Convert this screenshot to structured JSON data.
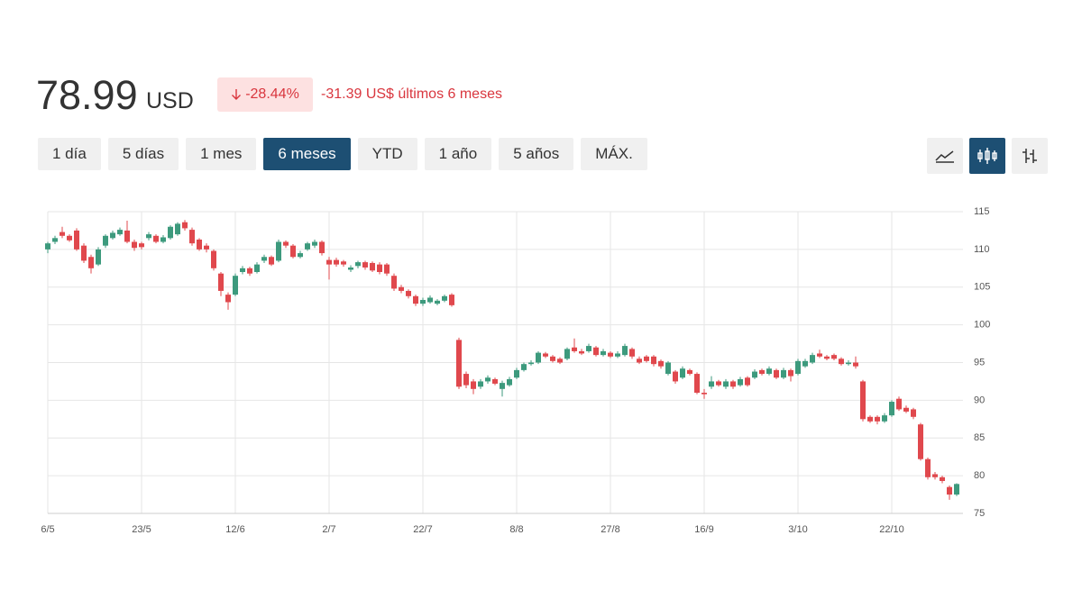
{
  "header": {
    "price": "78.99",
    "currency": "USD",
    "change_percent": "-28.44%",
    "change_text": "-31.39 US$ últimos 6 meses"
  },
  "range_buttons": [
    "1 día",
    "5 días",
    "1 mes",
    "6 meses",
    "YTD",
    "1 año",
    "5 años",
    "MÁX."
  ],
  "chart_data": {
    "type": "candlestick",
    "categories": [
      "6/5",
      null,
      null,
      null,
      null,
      null,
      null,
      null,
      null,
      null,
      null,
      null,
      null,
      "23/5",
      null,
      null,
      null,
      null,
      null,
      null,
      null,
      null,
      null,
      null,
      null,
      null,
      "12/6",
      null,
      null,
      null,
      null,
      null,
      null,
      null,
      null,
      null,
      null,
      null,
      null,
      "2/7",
      null,
      null,
      null,
      null,
      null,
      null,
      null,
      null,
      null,
      null,
      null,
      null,
      "22/7",
      null,
      null,
      null,
      null,
      null,
      null,
      null,
      null,
      null,
      null,
      null,
      null,
      "8/8",
      null,
      null,
      null,
      null,
      null,
      null,
      null,
      null,
      null,
      null,
      null,
      null,
      "27/8",
      null,
      null,
      null,
      null,
      null,
      null,
      null,
      null,
      null,
      null,
      null,
      null,
      "16/9",
      null,
      null,
      null,
      null,
      null,
      null,
      null,
      null,
      null,
      null,
      null,
      null,
      "3/10",
      null,
      null,
      null,
      null,
      null,
      null,
      null,
      null,
      null,
      null,
      null,
      null,
      "22/10",
      null,
      null,
      null,
      null,
      null,
      null,
      null,
      null,
      null
    ],
    "open": [
      110.0,
      111.0,
      112.3,
      111.8,
      112.5,
      110.5,
      109.0,
      108.0,
      110.5,
      111.5,
      112.0,
      112.5,
      111.0,
      110.8,
      111.5,
      111.8,
      111.0,
      111.5,
      112.0,
      113.6,
      112.6,
      111.3,
      110.5,
      109.8,
      106.8,
      104.0,
      104.0,
      107.0,
      107.5,
      107.0,
      108.5,
      109.0,
      108.5,
      111.0,
      110.5,
      109.0,
      110.0,
      110.5,
      111.0,
      108.6,
      108.6,
      108.4,
      107.3,
      107.8,
      108.3,
      108.2,
      108.0,
      108.0,
      106.5,
      105.0,
      104.5,
      103.8,
      102.8,
      103.0,
      102.8,
      103.2,
      104.0,
      98.0,
      93.5,
      92.5,
      91.8,
      92.5,
      92.8,
      91.5,
      92.0,
      93.0,
      94.0,
      94.8,
      95.0,
      96.2,
      95.8,
      95.5,
      95.5,
      97.0,
      96.5,
      96.5,
      97.0,
      96.0,
      96.3,
      95.8,
      96.0,
      96.8,
      95.5,
      95.8,
      95.8,
      95.2,
      93.5,
      93.8,
      93.0,
      94.0,
      93.5,
      91.0,
      91.8,
      92.5,
      91.8,
      92.5,
      92.0,
      93.0,
      93.0,
      94.0,
      93.5,
      94.0,
      93.0,
      94.0,
      93.5,
      94.5,
      95.0,
      96.2,
      95.8,
      96.0,
      95.5,
      94.8,
      95.0,
      92.5,
      87.8,
      87.8,
      87.2,
      88.0,
      90.2,
      89.0,
      88.8,
      86.8,
      82.2,
      80.2,
      79.8,
      78.5,
      77.5
    ],
    "high": [
      111.0,
      111.8,
      113.0,
      112.0,
      112.8,
      110.8,
      109.3,
      110.3,
      112.0,
      112.5,
      112.9,
      113.8,
      111.3,
      111.0,
      112.3,
      112.0,
      111.9,
      113.2,
      113.6,
      113.9,
      112.9,
      111.5,
      110.8,
      110.0,
      107.0,
      104.3,
      106.8,
      107.8,
      107.7,
      108.3,
      109.3,
      109.2,
      111.3,
      111.2,
      110.7,
      109.8,
      111.0,
      111.3,
      111.2,
      109.0,
      108.9,
      108.6,
      107.9,
      108.5,
      108.5,
      108.4,
      108.3,
      108.2,
      106.8,
      105.3,
      104.7,
      104.0,
      103.6,
      103.9,
      103.4,
      104.0,
      104.2,
      98.3,
      93.8,
      92.8,
      92.8,
      93.3,
      93.0,
      92.6,
      93.1,
      94.3,
      95.0,
      95.3,
      96.5,
      96.4,
      96.0,
      95.7,
      97.0,
      98.2,
      96.8,
      97.5,
      97.2,
      96.8,
      96.5,
      96.5,
      97.5,
      97.0,
      95.8,
      96.0,
      96.0,
      95.4,
      95.2,
      94.0,
      94.5,
      94.2,
      93.7,
      91.5,
      93.2,
      92.7,
      92.8,
      92.7,
      93.1,
      93.2,
      94.1,
      94.2,
      94.5,
      94.2,
      94.3,
      94.2,
      95.5,
      95.5,
      96.3,
      96.7,
      96.0,
      96.2,
      95.7,
      95.3,
      95.8,
      92.7,
      88.0,
      88.0,
      88.3,
      90.0,
      90.5,
      89.3,
      89.0,
      87.0,
      82.4,
      80.5,
      80.0,
      78.7,
      79.0
    ],
    "low": [
      109.5,
      110.7,
      111.5,
      111.0,
      109.8,
      108.2,
      106.8,
      107.8,
      110.2,
      111.3,
      111.8,
      110.8,
      109.8,
      110.0,
      111.2,
      110.8,
      110.8,
      111.3,
      111.8,
      112.5,
      110.5,
      109.8,
      109.6,
      107.2,
      103.8,
      102.0,
      103.8,
      106.7,
      106.5,
      106.8,
      108.2,
      107.8,
      108.3,
      110.2,
      108.8,
      108.8,
      109.8,
      110.2,
      109.2,
      106.0,
      107.7,
      107.7,
      107.0,
      107.5,
      107.3,
      107.0,
      106.7,
      106.5,
      104.5,
      104.2,
      103.5,
      102.5,
      102.5,
      102.8,
      102.6,
      103.0,
      102.4,
      91.5,
      91.6,
      90.8,
      91.5,
      92.2,
      92.0,
      90.5,
      91.8,
      92.8,
      93.8,
      94.6,
      94.8,
      95.6,
      95.0,
      94.8,
      95.3,
      96.3,
      96.0,
      96.3,
      95.8,
      95.8,
      95.6,
      95.6,
      95.8,
      95.5,
      94.8,
      95.0,
      94.5,
      94.2,
      93.3,
      92.2,
      92.8,
      93.3,
      90.8,
      90.2,
      91.5,
      91.8,
      91.5,
      91.5,
      91.8,
      91.8,
      92.8,
      93.3,
      93.3,
      92.8,
      92.8,
      92.5,
      93.3,
      94.3,
      94.8,
      95.6,
      95.3,
      95.3,
      94.6,
      94.6,
      94.2,
      87.2,
      87.0,
      86.8,
      87.0,
      87.8,
      88.6,
      88.3,
      87.5,
      82.0,
      79.5,
      79.5,
      79.0,
      76.8,
      77.3
    ],
    "close": [
      110.8,
      111.5,
      111.8,
      111.2,
      110.0,
      108.5,
      107.5,
      110.0,
      111.8,
      112.2,
      112.6,
      111.0,
      110.2,
      110.3,
      112.0,
      111.0,
      111.6,
      113.0,
      113.4,
      112.8,
      110.8,
      110.0,
      110.0,
      107.5,
      104.5,
      103.0,
      106.5,
      107.5,
      106.8,
      108.0,
      109.0,
      108.0,
      111.0,
      110.5,
      109.0,
      109.5,
      110.8,
      111.0,
      109.5,
      108.0,
      108.0,
      108.0,
      107.6,
      108.3,
      107.6,
      107.2,
      107.0,
      106.8,
      104.8,
      104.5,
      103.8,
      102.8,
      103.3,
      103.6,
      103.2,
      103.8,
      102.6,
      91.8,
      92.0,
      91.5,
      92.5,
      93.0,
      92.2,
      92.3,
      92.8,
      94.0,
      94.8,
      95.0,
      96.3,
      95.8,
      95.2,
      95.0,
      96.8,
      96.5,
      96.2,
      97.2,
      96.0,
      96.5,
      95.8,
      96.2,
      97.2,
      95.8,
      95.0,
      95.2,
      94.8,
      94.5,
      95.0,
      92.5,
      94.2,
      93.5,
      91.0,
      90.8,
      92.5,
      92.0,
      92.5,
      91.8,
      92.8,
      92.0,
      93.8,
      93.5,
      94.2,
      93.0,
      94.0,
      93.2,
      95.2,
      95.2,
      96.0,
      95.8,
      95.5,
      95.5,
      94.8,
      95.0,
      94.5,
      87.5,
      87.2,
      87.2,
      88.0,
      89.8,
      88.8,
      88.5,
      87.8,
      82.2,
      79.8,
      79.8,
      79.3,
      77.5,
      78.9
    ],
    "up_color": "#3d9a7d",
    "down_color": "#e0484d",
    "ylim": [
      75,
      115
    ],
    "yticks": [
      75,
      80,
      85,
      90,
      95,
      100,
      105,
      110,
      115
    ],
    "grid": true
  }
}
